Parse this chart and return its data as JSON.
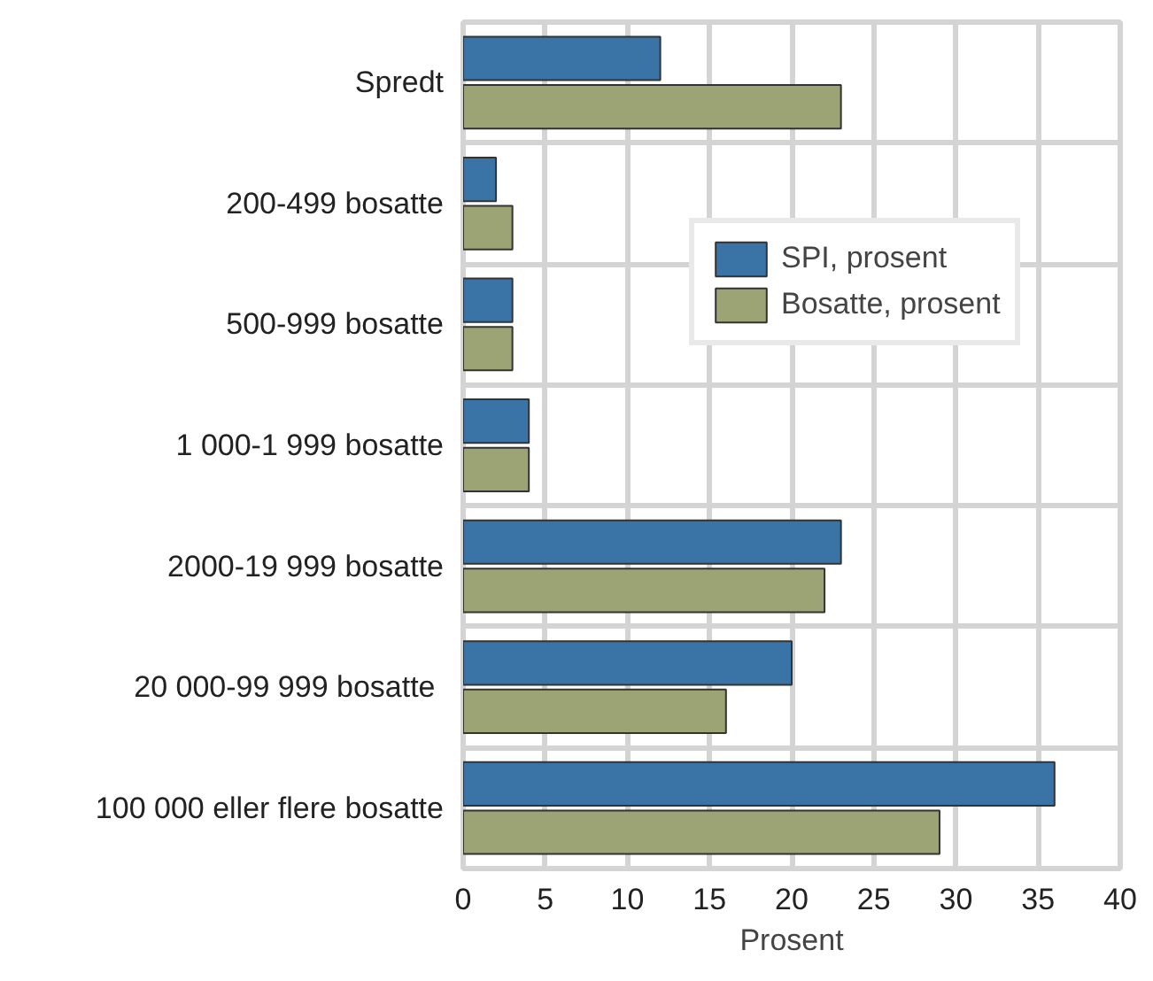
{
  "chart_data": {
    "type": "bar",
    "orientation": "horizontal",
    "xlabel": "Prosent",
    "categories": [
      "Spredt",
      "200-499 bosatte",
      "500-999 bosatte",
      "1 000-1 999 bosatte",
      "2000-19 999 bosatte",
      "20  000-99 999 bosatte",
      "100 000 eller flere bosatte"
    ],
    "series": [
      {
        "name": "SPI, prosent",
        "color": "#3a74a6",
        "values": [
          12,
          2,
          3,
          4,
          23,
          20,
          36
        ]
      },
      {
        "name": "Bosatte, prosent",
        "color": "#9ca374",
        "values": [
          23,
          3,
          3,
          4,
          22,
          16,
          29
        ]
      }
    ],
    "xlim": [
      0,
      40
    ],
    "xticks": [
      0,
      5,
      10,
      15,
      20,
      25,
      30,
      35,
      40
    ],
    "grid": true,
    "legend": "top right"
  }
}
